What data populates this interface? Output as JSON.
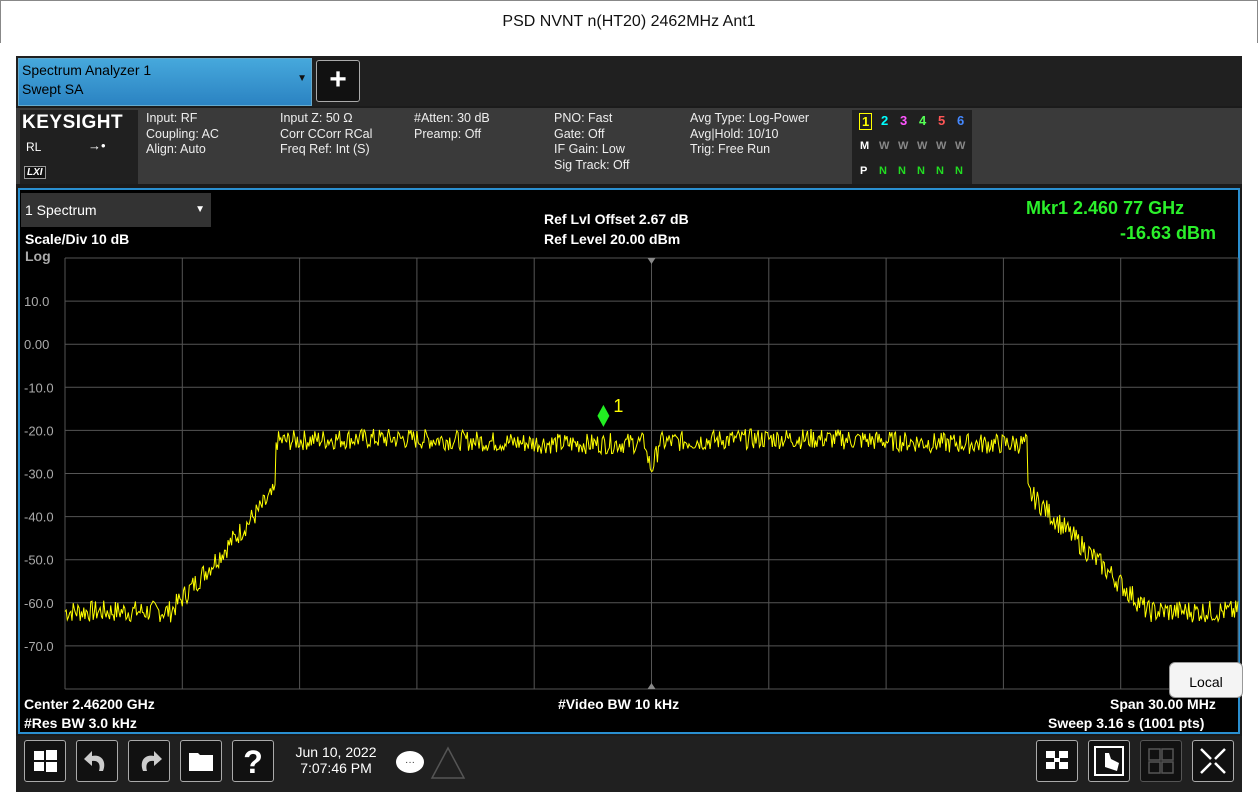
{
  "page_title": "PSD NVNT n(HT20) 2462MHz Ant1",
  "screen_tab": {
    "line1": "Spectrum Analyzer 1",
    "line2": "Swept SA"
  },
  "brand": {
    "name": "KEYSIGHT",
    "rl": "RL",
    "lxi": "LXI"
  },
  "settings": {
    "group1": [
      "Input: RF",
      "Coupling: AC",
      "Align: Auto"
    ],
    "group2": [
      "Input Z: 50 Ω",
      "Corr CCorr RCal",
      "Freq Ref: Int (S)"
    ],
    "group3": [
      "#Atten: 30 dB",
      "Preamp: Off"
    ],
    "group4": [
      "PNO: Fast",
      "Gate: Off",
      "IF Gain: Low",
      "Sig Track: Off"
    ],
    "group5": [
      "Avg Type: Log-Power",
      "Avg|Hold: 10/10",
      "Trig: Free Run"
    ]
  },
  "trace_indicators": {
    "numbers": [
      "1",
      "2",
      "3",
      "4",
      "5",
      "6"
    ],
    "number_colors": [
      "#ffff00",
      "#00ffff",
      "#ff55ff",
      "#55ff55",
      "#ff5555",
      "#4488ff"
    ],
    "mode_row": [
      "M",
      "W",
      "W",
      "W",
      "W",
      "W"
    ],
    "det_row": [
      "P",
      "N",
      "N",
      "N",
      "N",
      "N"
    ]
  },
  "view": {
    "menu_label": "1 Spectrum",
    "scale_div": "Scale/Div 10 dB",
    "scale_type": "Log",
    "ref_offset": "Ref Lvl Offset 2.67 dB",
    "ref_level": "Ref Level 20.00 dBm",
    "marker_freq": "Mkr1  2.460 77 GHz",
    "marker_amp": "-16.63 dBm",
    "marker_label": "1",
    "center": "Center 2.46200 GHz",
    "res_bw": "#Res BW 3.0 kHz",
    "video_bw": "#Video BW 10 kHz",
    "span": "Span 30.00 MHz",
    "sweep": "Sweep 3.16 s (1001 pts)",
    "local_button": "Local"
  },
  "chart_data": {
    "type": "line",
    "y_unit": "dBm",
    "ylim": [
      -80,
      20
    ],
    "y_ticks": [
      "10.0",
      "0.00",
      "-10.0",
      "-20.0",
      "-30.0",
      "-40.0",
      "-50.0",
      "-60.0",
      "-70.0"
    ],
    "x_range_ghz": [
      2.447,
      2.477
    ],
    "grid": true,
    "trace_color": "#ffff00",
    "trace_shape": {
      "noise_floor_dbm": -62,
      "passband_dbm": -22,
      "edge_low_ghz": 2.4524,
      "edge_high_ghz": 2.4716,
      "rolloff_low_start_ghz": 2.4497,
      "rolloff_high_end_ghz": 2.4747,
      "center_notch_ghz": 2.462,
      "center_notch_dbm": -29
    },
    "marker": {
      "x_ghz": 2.46077,
      "y_dbm": -16.63,
      "color": "#22ee22"
    }
  },
  "taskbar": {
    "date": "Jun 10, 2022",
    "time": "7:07:46 PM"
  }
}
